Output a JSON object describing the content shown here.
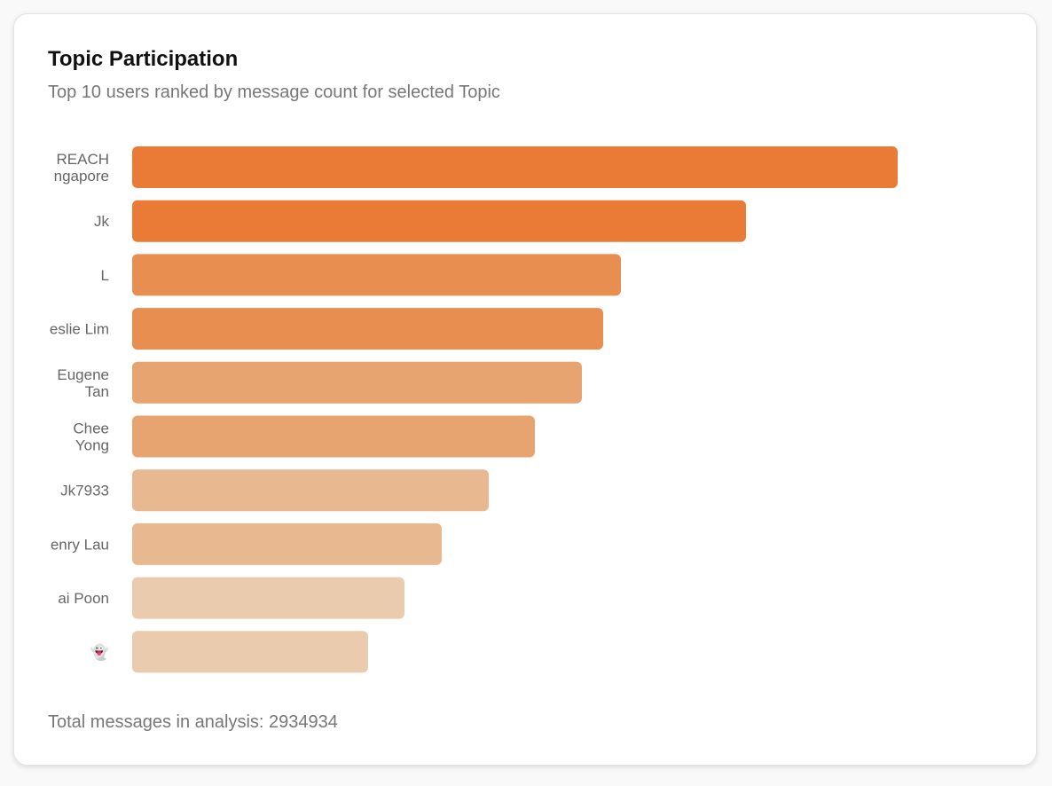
{
  "card": {
    "title": "Topic Participation",
    "subtitle": "Top 10 users ranked by message count for selected Topic",
    "footer": "Total messages in analysis: 2934934"
  },
  "chart_data": {
    "type": "bar",
    "orientation": "horizontal",
    "categories": [
      [
        "REACH",
        "ngapore"
      ],
      "Jk",
      "L",
      "eslie Lim",
      [
        "Eugene",
        "Tan"
      ],
      [
        "Chee",
        "Yong"
      ],
      "Jk7933",
      "enry Lau",
      "ai Poon",
      "👻"
    ],
    "values": [
      863,
      692,
      551,
      531,
      507,
      454,
      402,
      349,
      307,
      266
    ],
    "colors": [
      "#e97b36",
      "#e97b36",
      "#e88e50",
      "#e88e50",
      "#e8a470",
      "#e8a470",
      "#e8b891",
      "#e8b891",
      "#eacbae",
      "#eacbae"
    ]
  }
}
